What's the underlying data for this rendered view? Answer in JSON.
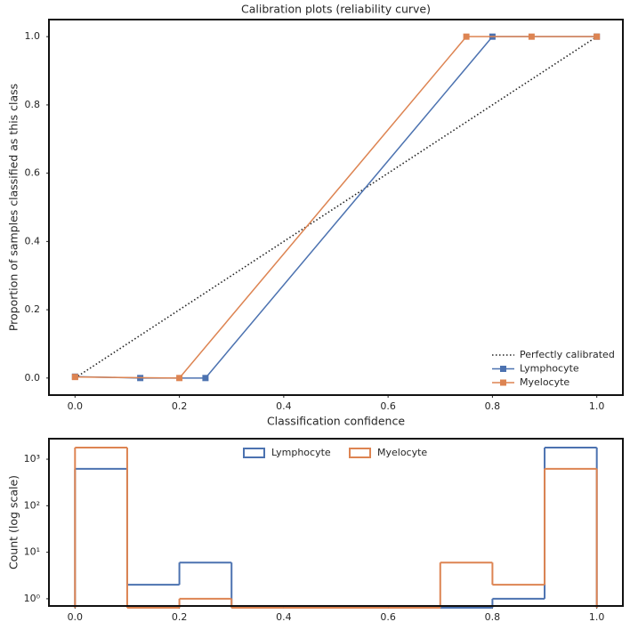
{
  "chart_data": [
    {
      "type": "line",
      "title": "Calibration plots (reliability curve)",
      "x_label": "Classification confidence",
      "y_label": "Proportion of samples classified as this class",
      "xlim": [
        -0.05,
        1.05
      ],
      "ylim": [
        -0.05,
        1.05
      ],
      "xticks": [
        {
          "value": 0,
          "label": "0.0"
        },
        0.2,
        0.4,
        0.6,
        0.8,
        {
          "value": 1,
          "label": "1.0"
        }
      ],
      "yticks": [
        {
          "value": 0,
          "label": "0.0"
        },
        0.2,
        0.4,
        0.6,
        0.8,
        {
          "value": 1,
          "label": "1.0"
        }
      ],
      "legend": "lower right",
      "series": [
        {
          "name": "Perfectly calibrated",
          "color": "#222222",
          "style": "dotted",
          "x": [
            0,
            1
          ],
          "values": [
            0,
            1
          ]
        },
        {
          "name": "Lymphocyte",
          "color": "#4c72b0",
          "marker": "square",
          "x": [
            0,
            0.125,
            0.25,
            0.8,
            1
          ],
          "values": [
            0.004,
            0,
            0,
            1,
            1
          ]
        },
        {
          "name": "Myelocyte",
          "color": "#dd8452",
          "marker": "square",
          "x": [
            0,
            0.2,
            0.75,
            0.875,
            1
          ],
          "values": [
            0.003,
            0,
            1,
            1,
            1
          ]
        }
      ]
    },
    {
      "type": "histogram",
      "y_label": "Count (log scale)",
      "log_y": true,
      "xlim": [
        -0.05,
        1.05
      ],
      "ylim": [
        0.7,
        2760
      ],
      "xticks": [
        {
          "value": 0,
          "label": "0.0"
        },
        0.2,
        0.4,
        0.6,
        0.8,
        {
          "value": 1,
          "label": "1.0"
        }
      ],
      "yticks": [
        {
          "value": 1,
          "label": "10⁰"
        },
        {
          "value": 10,
          "label": "10¹"
        },
        {
          "value": 100,
          "label": "10²"
        },
        {
          "value": 1000,
          "label": "10³"
        }
      ],
      "legend": "upper center",
      "bins": [
        0,
        0.1,
        0.2,
        0.3,
        0.4,
        0.5,
        0.6,
        0.7,
        0.8,
        0.9,
        1.0
      ],
      "series": [
        {
          "name": "Lymphocyte",
          "color": "#4c72b0",
          "values": [
            620,
            2,
            6,
            0,
            0,
            0,
            0,
            0,
            1,
            1780
          ]
        },
        {
          "name": "Myelocyte",
          "color": "#dd8452",
          "values": [
            1780,
            0,
            1,
            0,
            0,
            0,
            0,
            6,
            2,
            620
          ]
        }
      ]
    }
  ]
}
